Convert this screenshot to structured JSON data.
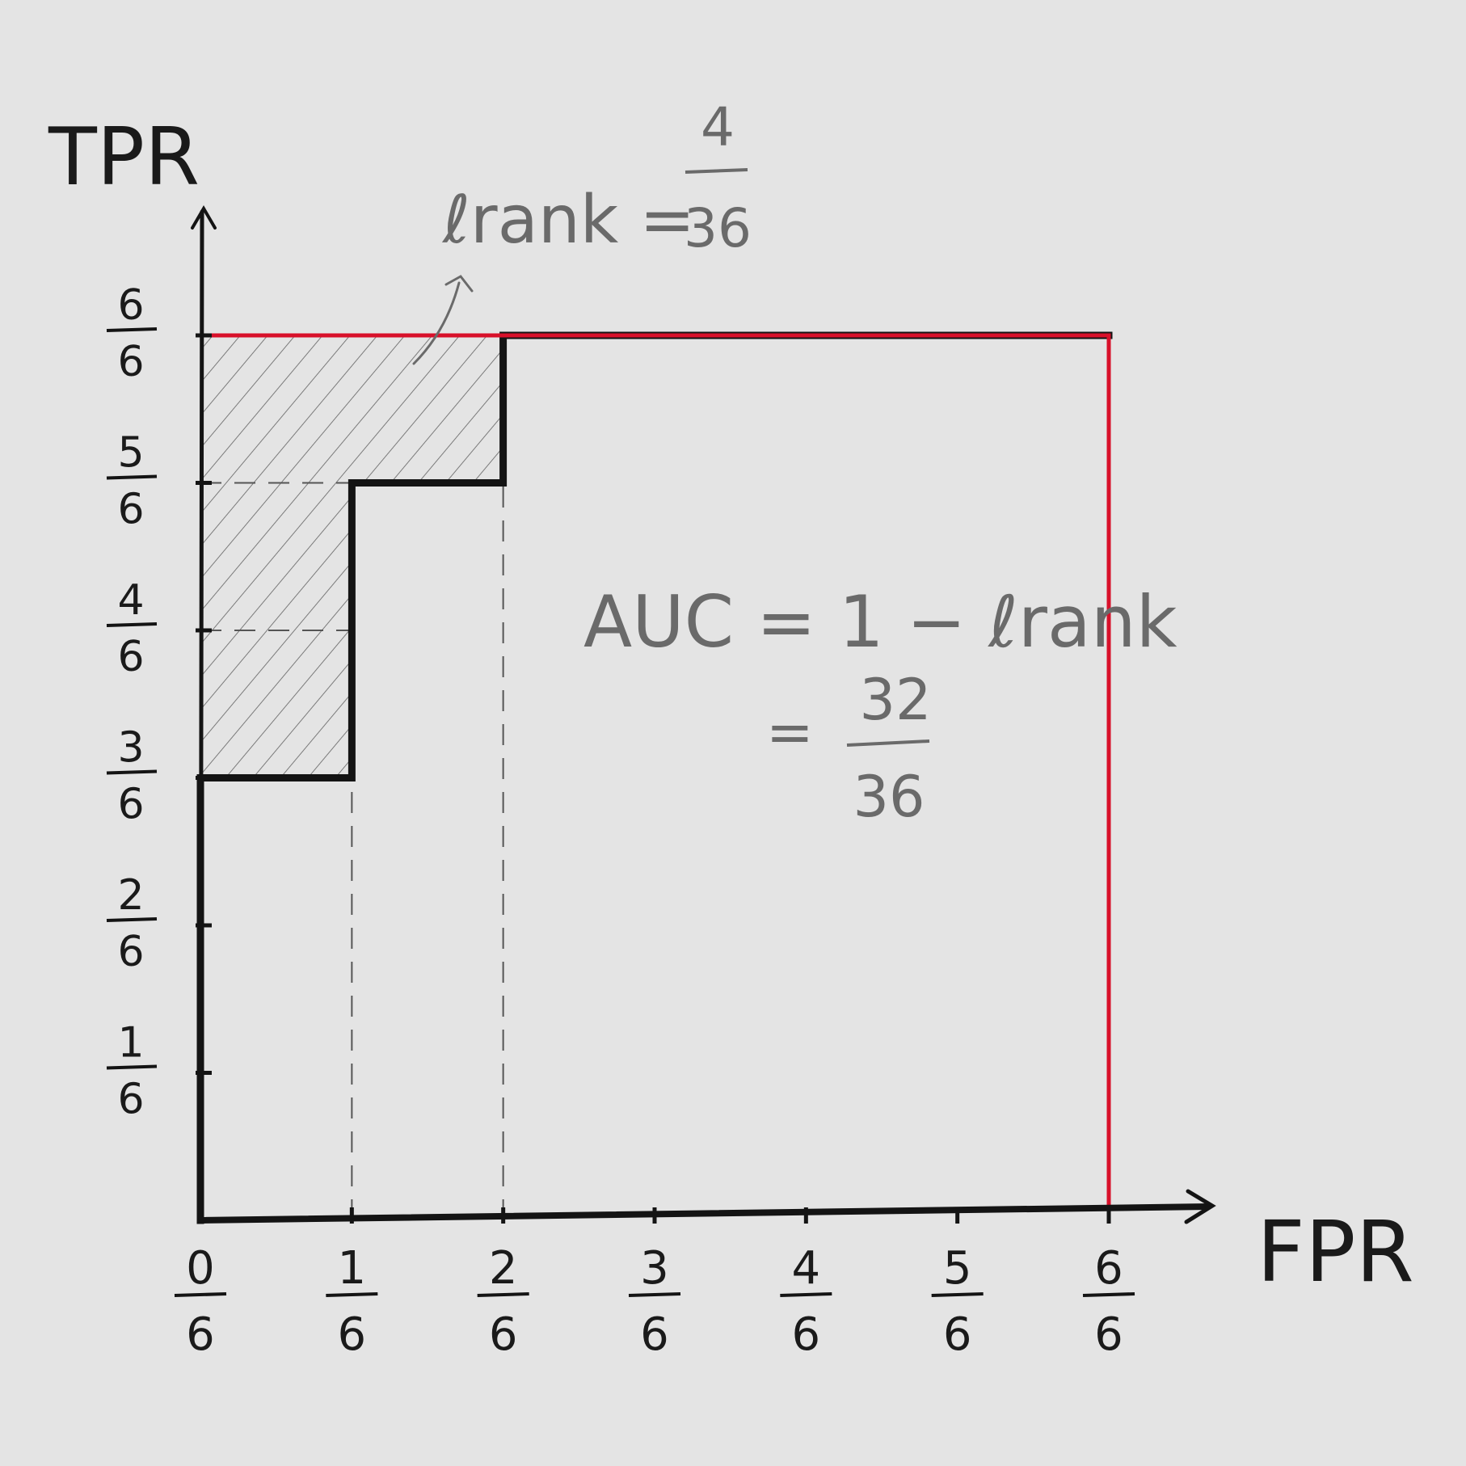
{
  "chart_data": {
    "type": "line",
    "title": "",
    "xlabel": "FPR",
    "ylabel": "TPR",
    "xlim": [
      0,
      1
    ],
    "ylim": [
      0,
      1
    ],
    "x_ticks": [
      {
        "num": "0",
        "den": "6"
      },
      {
        "num": "1",
        "den": "6"
      },
      {
        "num": "2",
        "den": "6"
      },
      {
        "num": "3",
        "den": "6"
      },
      {
        "num": "4",
        "den": "6"
      },
      {
        "num": "5",
        "den": "6"
      },
      {
        "num": "6",
        "den": "6"
      }
    ],
    "y_ticks": [
      {
        "num": "1",
        "den": "6"
      },
      {
        "num": "2",
        "den": "6"
      },
      {
        "num": "3",
        "den": "6"
      },
      {
        "num": "4",
        "den": "6"
      },
      {
        "num": "5",
        "den": "6"
      },
      {
        "num": "6",
        "den": "6"
      }
    ],
    "series": [
      {
        "color": "#141414",
        "x": [
          0,
          0,
          0.1667,
          0.1667,
          0.3333,
          0.3333,
          1
        ],
        "y": [
          0,
          0.5,
          0.5,
          0.8333,
          0.8333,
          1,
          1
        ]
      },
      {
        "color": "#d8102a",
        "x": [
          0,
          1,
          1
        ],
        "y": [
          1,
          1,
          0
        ]
      }
    ],
    "shaded_region": {
      "x": [
        0,
        0,
        0.3333,
        0.3333,
        0.1667,
        0.1667
      ],
      "y": [
        0.5,
        1,
        1,
        0.8333,
        0.8333,
        0.5
      ]
    },
    "guide_lines": {
      "vertical_x": [
        0.1667,
        0.3333
      ],
      "horizontal_y": [
        0.8333,
        0.6667
      ]
    },
    "annotations": {
      "lrank": {
        "lhs": "ℓrank =",
        "num": "4",
        "den": "36"
      },
      "auc": {
        "line1": "AUC = 1 − ℓrank",
        "eq": "=",
        "num": "32",
        "den": "36"
      }
    }
  }
}
